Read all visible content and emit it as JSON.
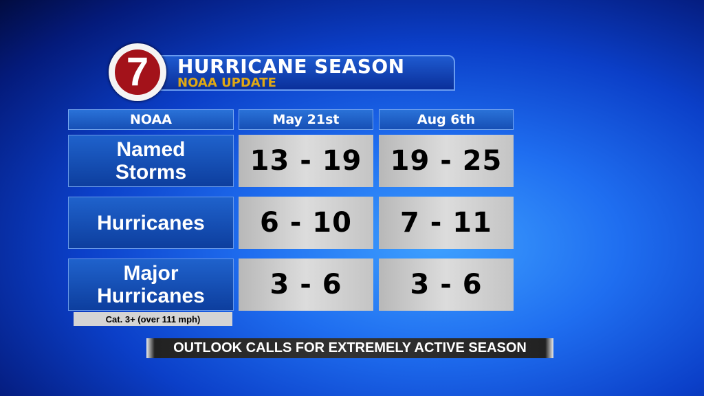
{
  "logo": {
    "text": "7",
    "colors": {
      "ring": "#f4f4f4",
      "disc": "#a3121a"
    }
  },
  "header": {
    "title": "HURRICANE SEASON",
    "subtitle": "NOAA UPDATE",
    "subtitle_color": "#e0a814"
  },
  "table": {
    "columns": [
      "NOAA",
      "May 21st",
      "Aug 6th"
    ],
    "rows": [
      {
        "label": "Named Storms",
        "values": [
          "13 - 19",
          "19 - 25"
        ]
      },
      {
        "label": "Hurricanes",
        "values": [
          "6 - 10",
          "7 - 11"
        ]
      },
      {
        "label": "Major Hurricanes",
        "values": [
          "3 - 6",
          "3 - 6"
        ],
        "note": "Cat. 3+ (over 111 mph)"
      }
    ]
  },
  "banner": {
    "text": "OUTLOOK CALLS FOR EXTREMELY ACTIVE SEASON"
  }
}
